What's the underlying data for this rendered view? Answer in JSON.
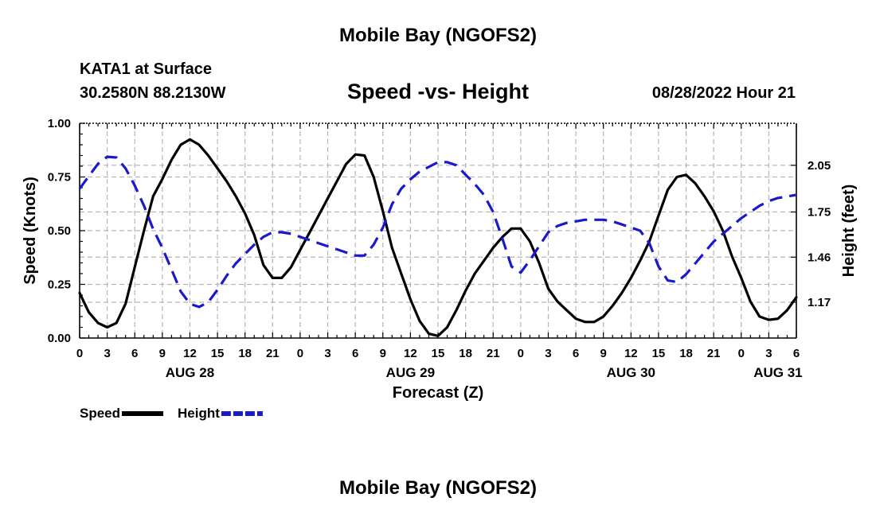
{
  "header": {
    "title": "Mobile Bay (NGOFS2)",
    "station": "KATA1 at Surface",
    "coords": "30.2580N  88.2130W",
    "subtitle": "Speed -vs- Height",
    "timestamp": "08/28/2022 Hour 21"
  },
  "footer": {
    "title": "Mobile Bay (NGOFS2)"
  },
  "chart_data": {
    "type": "line",
    "title": "Speed -vs- Height",
    "xlabel": "Forecast (Z)",
    "ylabel": "Speed (Knots)",
    "y2label": "Height (feet)",
    "xlim": [
      0,
      78
    ],
    "ylim": [
      0,
      1.0
    ],
    "y2lim": [
      0.94,
      2.32
    ],
    "grid": true,
    "legend_position": "bottom-left",
    "x_tick_labels": [
      "0",
      "3",
      "6",
      "9",
      "12",
      "15",
      "18",
      "21",
      "0",
      "3",
      "6",
      "9",
      "12",
      "15",
      "18",
      "21",
      "0",
      "3",
      "6",
      "9",
      "12",
      "15",
      "18",
      "21",
      "0",
      "3",
      "6"
    ],
    "date_labels": [
      {
        "hour": 12,
        "text": "AUG 28"
      },
      {
        "hour": 36,
        "text": "AUG 29"
      },
      {
        "hour": 60,
        "text": "AUG 30"
      },
      {
        "hour": 76,
        "text": "AUG 31"
      }
    ],
    "y_ticks": [
      {
        "value": 0,
        "label": "0.00"
      },
      {
        "value": 0.25,
        "label": "0.25"
      },
      {
        "value": 0.5,
        "label": "0.50"
      },
      {
        "value": 0.75,
        "label": "0.75"
      },
      {
        "value": 1.0,
        "label": "1.00"
      }
    ],
    "y2_ticks": [
      {
        "value": 1.17,
        "label": "1.17"
      },
      {
        "value": 1.46,
        "label": "1.46"
      },
      {
        "value": 1.75,
        "label": "1.75"
      },
      {
        "value": 2.05,
        "label": "2.05"
      }
    ],
    "series": [
      {
        "name": "Speed",
        "axis": "left",
        "color": "#000000",
        "dash": "solid",
        "points": [
          [
            0,
            0.21
          ],
          [
            1,
            0.12
          ],
          [
            2,
            0.07
          ],
          [
            3,
            0.05
          ],
          [
            4,
            0.07
          ],
          [
            5,
            0.16
          ],
          [
            6,
            0.33
          ],
          [
            7,
            0.5
          ],
          [
            8,
            0.66
          ],
          [
            9,
            0.74
          ],
          [
            10,
            0.83
          ],
          [
            11,
            0.9
          ],
          [
            12,
            0.925
          ],
          [
            13,
            0.9
          ],
          [
            14,
            0.85
          ],
          [
            15,
            0.79
          ],
          [
            16,
            0.73
          ],
          [
            17,
            0.66
          ],
          [
            18,
            0.58
          ],
          [
            19,
            0.48
          ],
          [
            20,
            0.34
          ],
          [
            21,
            0.28
          ],
          [
            22,
            0.28
          ],
          [
            23,
            0.33
          ],
          [
            24,
            0.41
          ],
          [
            25,
            0.49
          ],
          [
            26,
            0.57
          ],
          [
            27,
            0.65
          ],
          [
            28,
            0.73
          ],
          [
            29,
            0.81
          ],
          [
            30,
            0.855
          ],
          [
            31,
            0.85
          ],
          [
            32,
            0.75
          ],
          [
            33,
            0.59
          ],
          [
            34,
            0.42
          ],
          [
            35,
            0.3
          ],
          [
            36,
            0.18
          ],
          [
            37,
            0.08
          ],
          [
            38,
            0.02
          ],
          [
            39,
            0.01
          ],
          [
            40,
            0.05
          ],
          [
            41,
            0.13
          ],
          [
            42,
            0.22
          ],
          [
            43,
            0.3
          ],
          [
            44,
            0.36
          ],
          [
            45,
            0.42
          ],
          [
            46,
            0.47
          ],
          [
            47,
            0.51
          ],
          [
            48,
            0.51
          ],
          [
            49,
            0.45
          ],
          [
            50,
            0.35
          ],
          [
            51,
            0.23
          ],
          [
            52,
            0.17
          ],
          [
            53,
            0.13
          ],
          [
            54,
            0.09
          ],
          [
            55,
            0.075
          ],
          [
            56,
            0.075
          ],
          [
            57,
            0.1
          ],
          [
            58,
            0.15
          ],
          [
            59,
            0.21
          ],
          [
            60,
            0.28
          ],
          [
            61,
            0.36
          ],
          [
            62,
            0.45
          ],
          [
            63,
            0.57
          ],
          [
            64,
            0.69
          ],
          [
            65,
            0.75
          ],
          [
            66,
            0.76
          ],
          [
            67,
            0.72
          ],
          [
            68,
            0.66
          ],
          [
            69,
            0.59
          ],
          [
            70,
            0.5
          ],
          [
            71,
            0.38
          ],
          [
            72,
            0.28
          ],
          [
            73,
            0.17
          ],
          [
            74,
            0.1
          ],
          [
            75,
            0.085
          ],
          [
            76,
            0.09
          ],
          [
            77,
            0.13
          ],
          [
            78,
            0.19
          ]
        ]
      },
      {
        "name": "Height",
        "axis": "right",
        "color": "#1a1acc",
        "dash": "dashed",
        "points": [
          [
            0,
            1.9
          ],
          [
            1,
            1.98
          ],
          [
            2,
            2.06
          ],
          [
            3,
            2.105
          ],
          [
            4,
            2.1
          ],
          [
            5,
            2.03
          ],
          [
            6,
            1.92
          ],
          [
            7,
            1.79
          ],
          [
            8,
            1.64
          ],
          [
            9,
            1.52
          ],
          [
            10,
            1.38
          ],
          [
            11,
            1.24
          ],
          [
            12,
            1.16
          ],
          [
            13,
            1.14
          ],
          [
            14,
            1.17
          ],
          [
            15,
            1.25
          ],
          [
            16,
            1.34
          ],
          [
            17,
            1.42
          ],
          [
            18,
            1.48
          ],
          [
            19,
            1.54
          ],
          [
            20,
            1.59
          ],
          [
            21,
            1.62
          ],
          [
            22,
            1.62
          ],
          [
            23,
            1.61
          ],
          [
            24,
            1.59
          ],
          [
            25,
            1.57
          ],
          [
            26,
            1.55
          ],
          [
            27,
            1.53
          ],
          [
            28,
            1.51
          ],
          [
            29,
            1.49
          ],
          [
            30,
            1.47
          ],
          [
            31,
            1.47
          ],
          [
            32,
            1.54
          ],
          [
            33,
            1.65
          ],
          [
            34,
            1.8
          ],
          [
            35,
            1.9
          ],
          [
            36,
            1.96
          ],
          [
            37,
            2.01
          ],
          [
            38,
            2.04
          ],
          [
            39,
            2.07
          ],
          [
            40,
            2.07
          ],
          [
            41,
            2.05
          ],
          [
            42,
            1.99
          ],
          [
            43,
            1.93
          ],
          [
            44,
            1.86
          ],
          [
            45,
            1.75
          ],
          [
            46,
            1.58
          ],
          [
            47,
            1.4
          ],
          [
            48,
            1.36
          ],
          [
            49,
            1.44
          ],
          [
            50,
            1.53
          ],
          [
            51,
            1.62
          ],
          [
            52,
            1.66
          ],
          [
            53,
            1.68
          ],
          [
            54,
            1.69
          ],
          [
            55,
            1.7
          ],
          [
            56,
            1.7
          ],
          [
            57,
            1.7
          ],
          [
            58,
            1.69
          ],
          [
            59,
            1.67
          ],
          [
            60,
            1.65
          ],
          [
            61,
            1.63
          ],
          [
            62,
            1.55
          ],
          [
            63,
            1.4
          ],
          [
            64,
            1.31
          ],
          [
            65,
            1.3
          ],
          [
            66,
            1.35
          ],
          [
            67,
            1.42
          ],
          [
            68,
            1.49
          ],
          [
            69,
            1.56
          ],
          [
            70,
            1.61
          ],
          [
            71,
            1.66
          ],
          [
            72,
            1.71
          ],
          [
            73,
            1.75
          ],
          [
            74,
            1.79
          ],
          [
            75,
            1.82
          ],
          [
            76,
            1.84
          ],
          [
            77,
            1.85
          ],
          [
            78,
            1.86
          ]
        ]
      }
    ]
  }
}
